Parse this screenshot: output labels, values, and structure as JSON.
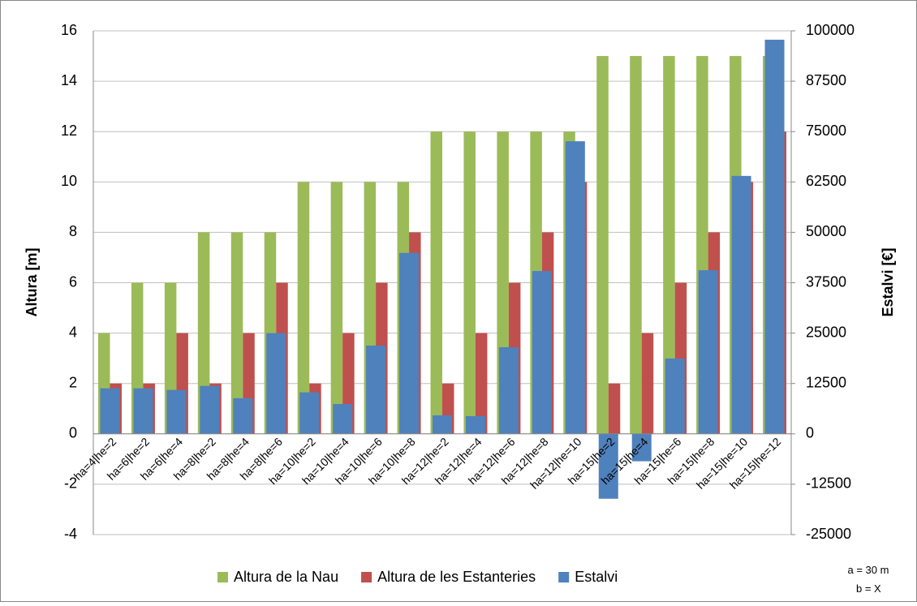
{
  "chart_data": {
    "type": "bar",
    "categories": [
      "ha=4|he=2",
      "ha=6|he=2",
      "ha=6|he=4",
      "ha=8|he=2",
      "ha=8|he=4",
      "ha=8|he=6",
      "ha=10|he=2",
      "ha=10|he=4",
      "ha=10|he=6",
      "ha=10|he=8",
      "ha=12|he=2",
      "ha=12|he=4",
      "ha=12|he=6",
      "ha=12|he=8",
      "ha=12|he=10",
      "ha=15|he=2",
      "ha=15|he=4",
      "ha=15|he=6",
      "ha=15|he=8",
      "ha=15|he=10",
      "ha=15|he=12"
    ],
    "series": [
      {
        "name": "Altura de la Nau",
        "color": "#9bbb59",
        "values": [
          4,
          6,
          6,
          8,
          8,
          8,
          10,
          10,
          10,
          10,
          12,
          12,
          12,
          12,
          12,
          15,
          15,
          15,
          15,
          15,
          15
        ]
      },
      {
        "name": "Altura de les Estanteries",
        "color": "#c0504d",
        "values": [
          2,
          2,
          4,
          2,
          4,
          6,
          2,
          4,
          6,
          8,
          2,
          4,
          6,
          8,
          10,
          2,
          4,
          6,
          8,
          10,
          12
        ]
      },
      {
        "name": "Estalvi",
        "color": "#4f81bd",
        "axis": "y2",
        "values": [
          11300,
          11300,
          10900,
          11900,
          8850,
          25000,
          10300,
          7400,
          21900,
          44900,
          4600,
          4400,
          21500,
          40400,
          72600,
          -16100,
          -6800,
          18700,
          40600,
          64000,
          97800
        ]
      }
    ],
    "ylabel": "Altura [m]",
    "y2label": "Estalvi [€]",
    "ylim": [
      -4,
      16
    ],
    "yticks": [
      -4,
      -2,
      0,
      2,
      4,
      6,
      8,
      10,
      12,
      14,
      16
    ],
    "y2lim": [
      -25000,
      100000
    ],
    "y2ticks": [
      -25000,
      -12500,
      0,
      12500,
      25000,
      37500,
      50000,
      62500,
      75000,
      87500,
      100000
    ],
    "grid": true,
    "legend": "bottom",
    "annotations": [
      "a = 30 m",
      "b = X"
    ]
  }
}
